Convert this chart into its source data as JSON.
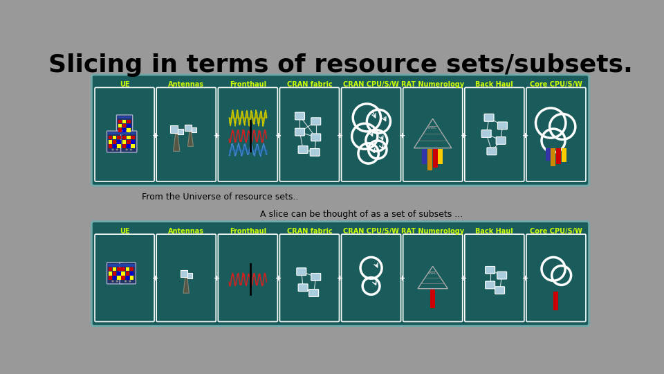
{
  "title": "Slicing in terms of resource sets/subsets.",
  "bg_color": "#999999",
  "panel_bg": "#1a5c5c",
  "panel_border": "#5aaaaa",
  "title_color": "#000000",
  "title_fontsize": 26,
  "label_color": "#ccff00",
  "label_fontsize": 7,
  "text1": "From the Universe of resource sets..",
  "text2": "A slice can be thought of as a set of subsets ...",
  "text_color": "#000000",
  "text_fontsize": 9,
  "sections": [
    "UE",
    "Antennas",
    "Fronthaul",
    "CRAN fabric",
    "CRAN CPU/S/W",
    "RAT Numerology",
    "Back Haul",
    "Core CPU/S/W"
  ],
  "inner_box_color": "#ccffff",
  "node_color": "#aaccdd"
}
